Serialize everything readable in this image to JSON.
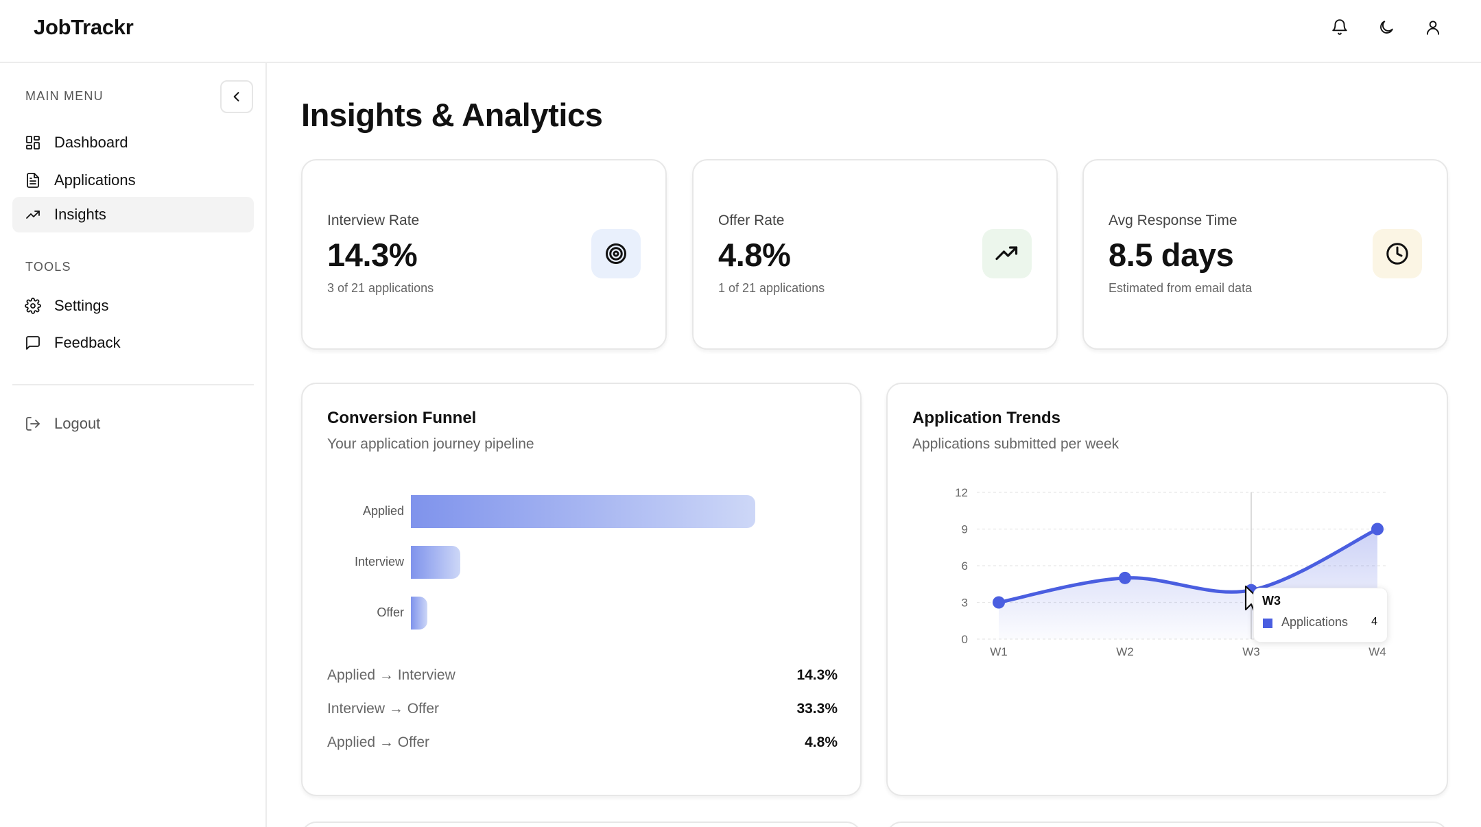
{
  "app": {
    "title": "JobTrackr"
  },
  "header": {
    "icons": [
      "bell-icon",
      "moon-icon",
      "user-icon"
    ]
  },
  "sidebar": {
    "main_menu_label": "MAIN MENU",
    "items": [
      {
        "label": "Dashboard",
        "icon": "grid-icon"
      },
      {
        "label": "Applications",
        "icon": "file-icon"
      },
      {
        "label": "Insights",
        "icon": "trending-icon",
        "active": true
      }
    ],
    "tools_label": "TOOLS",
    "tools": [
      {
        "label": "Settings",
        "icon": "gear-icon"
      },
      {
        "label": "Feedback",
        "icon": "message-icon"
      }
    ],
    "logout": {
      "label": "Logout",
      "icon": "logout-icon"
    }
  },
  "page": {
    "title": "Insights & Analytics"
  },
  "stats": [
    {
      "label": "Interview Rate",
      "value": "14.3%",
      "sub": "3 of 21 applications",
      "icon": "target-icon",
      "icon_bg": "#e9f0fc"
    },
    {
      "label": "Offer Rate",
      "value": "4.8%",
      "sub": "1 of 21 applications",
      "icon": "trending-up-icon",
      "icon_bg": "#ecf6ec"
    },
    {
      "label": "Avg Response Time",
      "value": "8.5 days",
      "sub": "Estimated from email data",
      "icon": "clock-icon",
      "icon_bg": "#fbf5e4"
    }
  ],
  "funnel": {
    "title": "Conversion Funnel",
    "subtitle": "Your application journey pipeline",
    "stages": [
      {
        "label": "Applied",
        "value": 21
      },
      {
        "label": "Interview",
        "value": 3
      },
      {
        "label": "Offer",
        "value": 1
      }
    ],
    "ratios": [
      {
        "label": "Applied → Interview",
        "value": "14.3%"
      },
      {
        "label": "Interview → Offer",
        "value": "33.3%"
      },
      {
        "label": "Applied → Offer",
        "value": "4.8%"
      }
    ]
  },
  "trends": {
    "title": "Application Trends",
    "subtitle": "Applications submitted per week",
    "tooltip": {
      "title": "W3",
      "series": "Applications",
      "value": "4"
    }
  },
  "chart_data": {
    "type": "area",
    "categories": [
      "W1",
      "W2",
      "W3",
      "W4"
    ],
    "series": [
      {
        "name": "Applications",
        "values": [
          3,
          5,
          4,
          9
        ]
      }
    ],
    "yticks": [
      0,
      3,
      6,
      9,
      12
    ],
    "ylim": [
      0,
      12
    ],
    "grid": true,
    "color": "#4a5ee0",
    "highlight": "W3"
  }
}
